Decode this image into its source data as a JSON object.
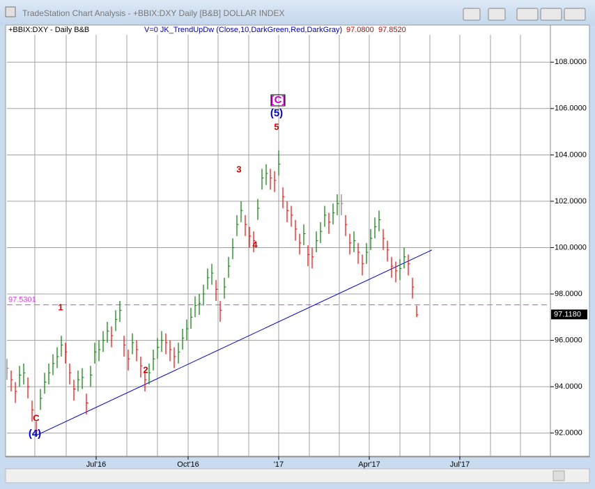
{
  "window_title": "TradeStation Chart Analysis - +BBIX:DXY Daily [B&B] DOLLAR INDEX",
  "chart_data": {
    "type": "ohlc",
    "symbol_label": "+BBIX:DXY - Daily  B&B",
    "indicator_label": "V=0  JK_TrendUpDw (Close,10,DarkGreen,Red,DarkGray)",
    "indicator_values": [
      {
        "value": 97.08,
        "label": "97.0800"
      },
      {
        "value": 97.852,
        "label": "97.8520"
      }
    ],
    "x": [
      0,
      3,
      6,
      9,
      12,
      15,
      18,
      21,
      24,
      27,
      30,
      33,
      36,
      39,
      42,
      45,
      48,
      51,
      54,
      57,
      60,
      63,
      66,
      69,
      72,
      75,
      78,
      81,
      84,
      87,
      90,
      93,
      96,
      99,
      102,
      105,
      108,
      111,
      114,
      117,
      120,
      123,
      126,
      129,
      132,
      135,
      138,
      141,
      144,
      147,
      150,
      153,
      156,
      159,
      162,
      165,
      168,
      171,
      174,
      177,
      180,
      183,
      186,
      189,
      192,
      195,
      198,
      201,
      204,
      207,
      210,
      213,
      216,
      219,
      222,
      225,
      228,
      231,
      234,
      237,
      240,
      243,
      246,
      249,
      252,
      255,
      258,
      261,
      264,
      267,
      270,
      273,
      276,
      279,
      282,
      285,
      288,
      291,
      294
    ],
    "high": [
      95.2,
      94.7,
      94.2,
      94.9,
      95.0,
      94.4,
      93.4,
      92.5,
      93.9,
      94.6,
      95.0,
      95.4,
      95.7,
      96.2,
      95.9,
      95.0,
      94.3,
      94.7,
      94.8,
      93.7,
      94.9,
      95.9,
      96.0,
      96.4,
      96.8,
      96.6,
      97.3,
      97.7,
      96.2,
      95.6,
      96.3,
      96.0,
      95.3,
      94.7,
      95.0,
      95.6,
      96.1,
      96.4,
      96.3,
      96.0,
      95.7,
      95.9,
      96.5,
      96.9,
      97.4,
      97.9,
      98.0,
      98.4,
      99.1,
      99.3,
      98.6,
      97.7,
      98.7,
      99.6,
      100.4,
      101.4,
      102.0,
      101.4,
      100.9,
      100.7,
      102.1,
      103.4,
      103.6,
      103.4,
      103.3,
      104.2,
      102.6,
      102.0,
      101.8,
      101.2,
      100.6,
      101.0,
      100.1,
      100.0,
      100.7,
      101.1,
      101.8,
      101.5,
      101.9,
      102.3,
      102.3,
      101.4,
      100.6,
      100.7,
      100.2,
      99.7,
      100.2,
      100.8,
      101.3,
      101.6,
      100.8,
      100.3,
      99.6,
      99.4,
      99.5,
      100.0,
      99.7,
      98.7,
      97.5
    ],
    "low": [
      94.3,
      93.8,
      93.3,
      94.0,
      94.1,
      93.5,
      92.5,
      91.9,
      93.0,
      93.7,
      94.1,
      94.5,
      94.8,
      95.3,
      95.0,
      94.1,
      93.4,
      93.8,
      93.9,
      92.8,
      94.0,
      95.0,
      95.1,
      95.5,
      95.9,
      95.7,
      96.4,
      96.8,
      95.3,
      94.7,
      95.4,
      95.1,
      94.4,
      93.8,
      94.1,
      94.7,
      95.2,
      95.5,
      95.4,
      95.1,
      94.8,
      95.0,
      95.6,
      96.0,
      96.5,
      97.0,
      97.1,
      97.5,
      98.2,
      98.4,
      97.7,
      96.8,
      97.8,
      98.7,
      99.5,
      100.5,
      101.1,
      100.5,
      100.0,
      99.8,
      101.2,
      102.5,
      102.7,
      102.5,
      102.4,
      103.1,
      101.7,
      101.1,
      100.9,
      100.3,
      99.7,
      100.1,
      99.2,
      99.1,
      99.8,
      100.2,
      100.9,
      100.6,
      101.0,
      101.4,
      101.4,
      100.5,
      99.7,
      99.8,
      99.3,
      98.8,
      99.3,
      99.9,
      100.4,
      100.7,
      99.9,
      99.4,
      98.7,
      98.5,
      98.6,
      99.1,
      98.8,
      97.8,
      97.0
    ],
    "close": [
      94.8,
      94.3,
      93.8,
      94.5,
      94.6,
      94.0,
      93.0,
      92.1,
      93.5,
      94.2,
      94.6,
      95.0,
      95.3,
      95.8,
      95.5,
      94.6,
      93.9,
      94.3,
      94.4,
      93.3,
      94.5,
      95.5,
      95.6,
      96.0,
      96.4,
      96.2,
      96.9,
      97.3,
      95.8,
      95.2,
      95.9,
      95.6,
      94.9,
      94.3,
      94.6,
      95.2,
      95.7,
      96.0,
      95.9,
      95.6,
      95.3,
      95.5,
      96.1,
      96.5,
      97.0,
      97.5,
      97.6,
      98.0,
      98.7,
      98.9,
      98.2,
      97.3,
      98.3,
      99.2,
      100.0,
      101.0,
      101.6,
      101.0,
      100.5,
      100.3,
      101.7,
      103.0,
      103.2,
      103.0,
      102.9,
      103.6,
      102.2,
      101.6,
      101.4,
      100.8,
      100.2,
      100.6,
      99.7,
      99.6,
      100.3,
      100.7,
      101.4,
      101.1,
      101.5,
      101.9,
      101.9,
      101.0,
      100.2,
      100.3,
      99.8,
      99.3,
      99.8,
      100.4,
      100.9,
      101.2,
      100.4,
      99.9,
      99.2,
      99.0,
      99.1,
      99.6,
      99.3,
      98.3,
      97.1
    ],
    "up_color": "#008000",
    "down_color": "#ff0000",
    "flat_color": "#808080",
    "xlim": [
      0,
      390
    ],
    "xticks": [
      {
        "value": 64,
        "label": "Jul'16"
      },
      {
        "value": 130,
        "label": "Oct'16"
      },
      {
        "value": 195,
        "label": "'17"
      },
      {
        "value": 260,
        "label": "Apr'17"
      },
      {
        "value": 325,
        "label": "Jul'17"
      }
    ],
    "x_grid": [
      20,
      42.5,
      64,
      86,
      108,
      130,
      151.5,
      173.5,
      195,
      217,
      238.5,
      260,
      282,
      303.5,
      325,
      347,
      368.5
    ],
    "ylim": [
      91,
      109.6
    ],
    "yticks": [
      {
        "value": 92,
        "label": "92.0000"
      },
      {
        "value": 94,
        "label": "94.0000"
      },
      {
        "value": 96,
        "label": "96.0000"
      },
      {
        "value": 98,
        "label": "98.0000"
      },
      {
        "value": 100,
        "label": "100.0000"
      },
      {
        "value": 102,
        "label": "102.0000"
      },
      {
        "value": 104,
        "label": "104.0000"
      },
      {
        "value": 106,
        "label": "106.0000"
      },
      {
        "value": 108,
        "label": "108.0000"
      }
    ],
    "grid": true,
    "trendline": {
      "x": [
        21,
        305
      ],
      "y": [
        91.9,
        99.9
      ],
      "color": "#0000cc"
    },
    "hline": {
      "value": 97.5301,
      "label": "97.5301",
      "color": "#e040e0"
    },
    "last_price": {
      "value": 97.118,
      "label": "97.1180"
    },
    "wave_labels": [
      "1",
      "2",
      "3",
      "4",
      "5",
      "C",
      "(4)",
      "(5)",
      "[C]"
    ]
  }
}
